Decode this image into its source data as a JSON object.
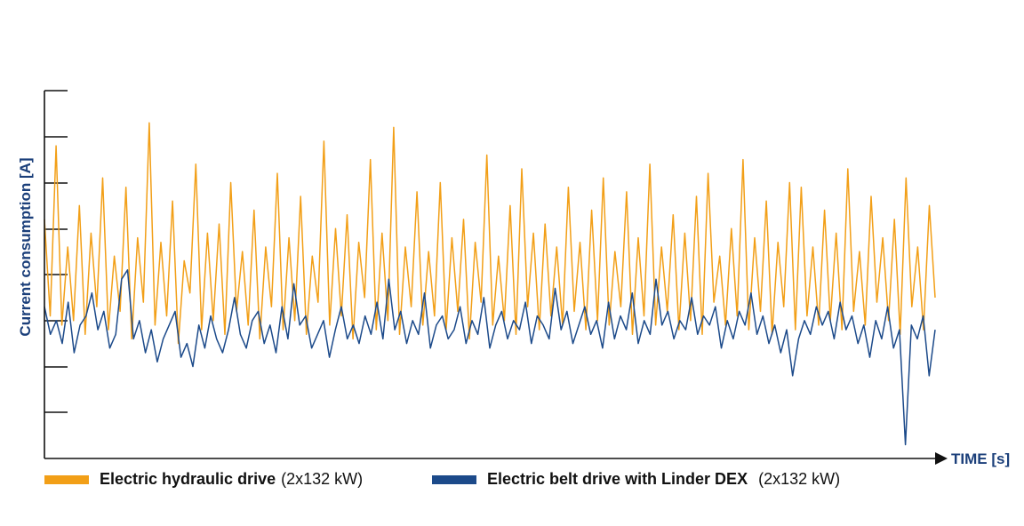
{
  "chart_data": {
    "type": "line",
    "title": "",
    "xlabel": "TIME [s]",
    "ylabel": "Current consumption [A]",
    "x_tick_labels": [],
    "y_tick_labels": [],
    "grid": false,
    "legend_position": "bottom",
    "series": [
      {
        "name": "Electric hydraulic drive",
        "spec": "(2x132 kW)",
        "color": "#f29f17",
        "values": [
          5.2,
          3.1,
          6.8,
          2.9,
          4.6,
          3.0,
          5.5,
          2.7,
          4.9,
          3.3,
          6.1,
          2.8,
          4.4,
          3.2,
          5.9,
          2.6,
          4.8,
          3.4,
          7.3,
          2.9,
          4.7,
          3.1,
          5.6,
          2.5,
          4.3,
          3.6,
          6.4,
          2.8,
          4.9,
          3.0,
          5.1,
          2.7,
          6.0,
          3.2,
          4.5,
          2.9,
          5.4,
          2.6,
          4.6,
          3.3,
          6.2,
          2.8,
          4.8,
          3.0,
          5.7,
          2.7,
          4.4,
          3.4,
          6.9,
          2.9,
          5.0,
          3.1,
          5.3,
          2.6,
          4.7,
          3.5,
          6.5,
          2.8,
          4.9,
          3.0,
          7.2,
          2.7,
          4.6,
          3.3,
          5.8,
          2.9,
          4.5,
          3.1,
          6.0,
          2.8,
          4.8,
          3.2,
          5.2,
          2.6,
          4.7,
          3.4,
          6.6,
          2.9,
          4.4,
          3.0,
          5.5,
          2.7,
          6.3,
          3.3,
          4.9,
          2.8,
          5.1,
          3.1,
          4.6,
          2.9,
          5.9,
          3.2,
          4.7,
          2.8,
          5.4,
          3.0,
          6.1,
          2.9,
          4.5,
          3.3,
          5.8,
          2.7,
          4.8,
          3.1,
          6.4,
          2.9,
          4.6,
          3.2,
          5.3,
          2.8,
          4.9,
          3.0,
          5.7,
          2.7,
          6.2,
          3.4,
          4.4,
          2.9,
          5.0,
          3.1,
          6.5,
          2.8,
          4.8,
          3.2,
          5.6,
          2.7,
          4.7,
          3.3,
          6.0,
          2.8,
          5.9,
          3.1,
          4.6,
          2.9,
          5.4,
          3.0,
          4.9,
          2.8,
          6.3,
          3.2,
          4.5,
          2.9,
          5.7,
          3.4,
          4.8,
          3.0,
          5.2,
          2.7,
          6.1,
          3.3,
          4.6,
          2.8,
          5.5,
          3.5
        ]
      },
      {
        "name": "Electric belt drive with Linder DEX",
        "spec": "(2x132 kW)",
        "color": "#1c4a8a",
        "values": [
          3.3,
          2.7,
          3.0,
          2.5,
          3.4,
          2.3,
          2.9,
          3.1,
          3.6,
          2.8,
          3.2,
          2.4,
          2.7,
          3.9,
          4.1,
          2.6,
          3.0,
          2.3,
          2.8,
          2.1,
          2.6,
          2.9,
          3.2,
          2.2,
          2.5,
          2.0,
          2.9,
          2.4,
          3.1,
          2.6,
          2.3,
          2.8,
          3.5,
          2.7,
          2.4,
          3.0,
          3.2,
          2.5,
          2.9,
          2.3,
          3.3,
          2.6,
          3.8,
          2.9,
          3.1,
          2.4,
          2.7,
          3.0,
          2.2,
          2.8,
          3.3,
          2.6,
          2.9,
          2.5,
          3.1,
          2.7,
          3.4,
          2.6,
          3.9,
          2.8,
          3.2,
          2.5,
          3.0,
          2.7,
          3.6,
          2.4,
          2.9,
          3.1,
          2.6,
          2.8,
          3.3,
          2.5,
          3.0,
          2.7,
          3.5,
          2.4,
          2.9,
          3.2,
          2.6,
          3.0,
          2.8,
          3.4,
          2.5,
          3.1,
          2.9,
          2.6,
          3.7,
          2.8,
          3.2,
          2.5,
          2.9,
          3.3,
          2.7,
          3.0,
          2.4,
          3.4,
          2.6,
          3.1,
          2.8,
          3.6,
          2.5,
          3.0,
          2.7,
          3.9,
          2.9,
          3.2,
          2.6,
          3.0,
          2.8,
          3.5,
          2.7,
          3.1,
          2.9,
          3.3,
          2.4,
          3.0,
          2.6,
          3.2,
          2.9,
          3.6,
          2.7,
          3.1,
          2.5,
          2.9,
          2.3,
          2.8,
          1.8,
          2.6,
          3.0,
          2.7,
          3.3,
          2.9,
          3.2,
          2.6,
          3.4,
          2.8,
          3.1,
          2.5,
          2.9,
          2.2,
          3.0,
          2.6,
          3.3,
          2.4,
          2.8,
          0.3,
          2.9,
          2.6,
          3.1,
          1.8,
          2.8
        ]
      }
    ]
  }
}
